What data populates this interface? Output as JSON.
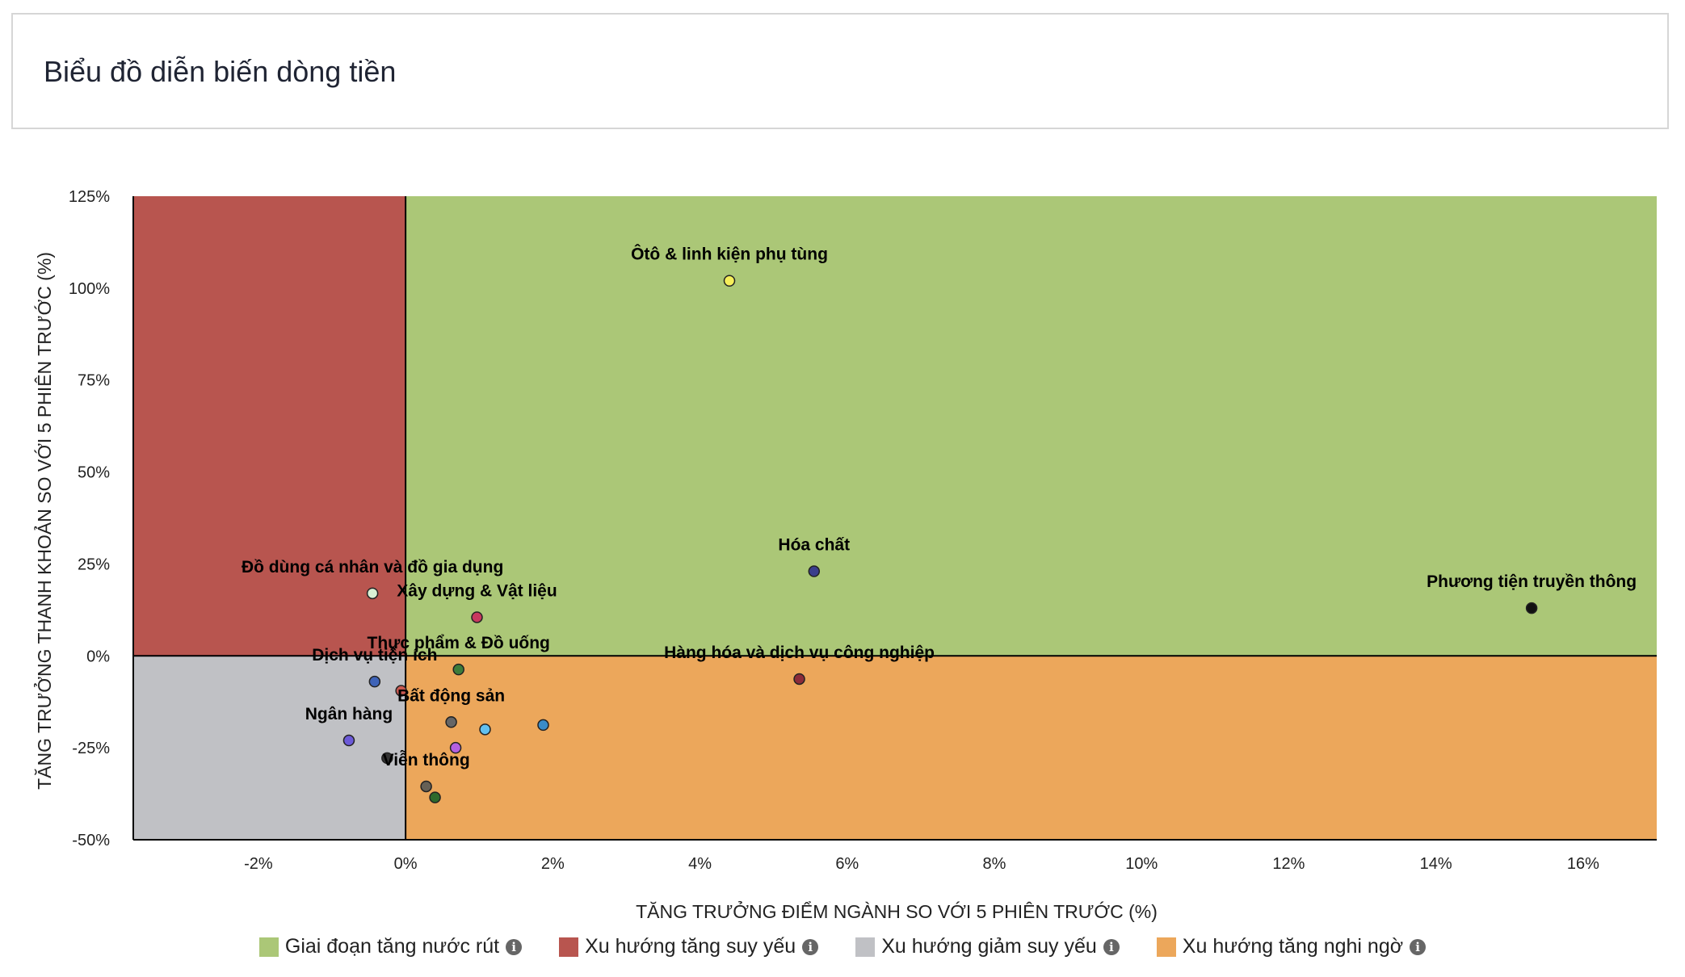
{
  "header": {
    "title": "Biểu đồ diễn biến dòng tiền"
  },
  "chart_data": {
    "type": "scatter",
    "xlabel": "TĂNG TRƯỞNG ĐIỂM NGÀNH SO VỚI 5 PHIÊN TRƯỚC (%)",
    "ylabel": "TĂNG TRƯỞNG THANH KHOẢN SO VỚI 5 PHIÊN TRƯỚC (%)",
    "xlim": [
      -3.7,
      17
    ],
    "ylim": [
      -50,
      125
    ],
    "x_ticks": [
      -2,
      0,
      2,
      4,
      6,
      8,
      10,
      12,
      14,
      16
    ],
    "x_tick_labels": [
      "-2%",
      "0%",
      "2%",
      "4%",
      "6%",
      "8%",
      "10%",
      "12%",
      "14%",
      "16%"
    ],
    "y_ticks": [
      125,
      100,
      75,
      50,
      25,
      0,
      -25,
      -50
    ],
    "y_tick_labels": [
      "125%",
      "100%",
      "75%",
      "50%",
      "25%",
      "0%",
      "-25%",
      "-50%"
    ],
    "quadrants": [
      {
        "name": "Giai đoạn tăng nước rút",
        "color": "#abc777",
        "x": [
          0,
          17
        ],
        "y": [
          0,
          125
        ]
      },
      {
        "name": "Xu hướng tăng suy yếu",
        "color": "#b8554f",
        "x": [
          -3.7,
          0
        ],
        "y": [
          0,
          125
        ]
      },
      {
        "name": "Xu hướng giảm suy yếu",
        "color": "#c0c1c5",
        "x": [
          -3.7,
          0
        ],
        "y": [
          -50,
          0
        ]
      },
      {
        "name": "Xu hướng tăng nghi ngờ",
        "color": "#eca75b",
        "x": [
          0,
          17
        ],
        "y": [
          -50,
          0
        ]
      }
    ],
    "points": [
      {
        "label": "Ôtô & linh kiện phụ tùng",
        "x": 4.4,
        "y": 102,
        "color": "#f5ee5a"
      },
      {
        "label": "Hóa chất",
        "x": 5.55,
        "y": 23,
        "color": "#3b3f8c"
      },
      {
        "label": "Phương tiện truyền thông",
        "x": 15.3,
        "y": 13,
        "color": "#111111"
      },
      {
        "label": "Đồ dùng cá nhân và đồ gia dụng",
        "x": -0.45,
        "y": 17,
        "color": "#d9f0d5"
      },
      {
        "label": "Xây dựng & Vật liệu",
        "x": 0.97,
        "y": 10.5,
        "color": "#c8385f"
      },
      {
        "label": "Hàng hóa và dịch vụ công nghiệp",
        "x": 5.35,
        "y": -6.3,
        "color": "#8c2b39"
      },
      {
        "label": "Thực phẩm & Đồ uống",
        "x": 0.72,
        "y": -3.7,
        "color": "#3e7c3a"
      },
      {
        "label": "Dịch vụ tiện ích",
        "x": -0.42,
        "y": -7,
        "color": "#3e63b8"
      },
      {
        "label": "",
        "x": -0.06,
        "y": -9.5,
        "color": "#c95850"
      },
      {
        "label": "Bất động sản",
        "x": 0.62,
        "y": -18,
        "color": "#666666"
      },
      {
        "label": "",
        "x": 1.08,
        "y": -20,
        "color": "#62c0ef"
      },
      {
        "label": "",
        "x": 1.87,
        "y": -18.8,
        "color": "#3a8cc8"
      },
      {
        "label": "Ngân hàng",
        "x": -0.77,
        "y": -23,
        "color": "#6c5ad8"
      },
      {
        "label": "",
        "x": -0.25,
        "y": -27.8,
        "color": "#333333"
      },
      {
        "label": "",
        "x": 0.68,
        "y": -25,
        "color": "#b460e0"
      },
      {
        "label": "Viễn thông",
        "x": 0.28,
        "y": -35.5,
        "color": "#666055"
      },
      {
        "label": "",
        "x": 0.4,
        "y": -38.5,
        "color": "#2e6a2c"
      }
    ]
  },
  "legend": [
    {
      "label": "Giai đoạn tăng nước rút",
      "color": "#abc777"
    },
    {
      "label": "Xu hướng tăng suy yếu",
      "color": "#b8554f"
    },
    {
      "label": "Xu hướng giảm suy yếu",
      "color": "#c0c1c5"
    },
    {
      "label": "Xu hướng tăng nghi ngờ",
      "color": "#eca75b"
    }
  ],
  "info_icon": "info-circle-icon"
}
